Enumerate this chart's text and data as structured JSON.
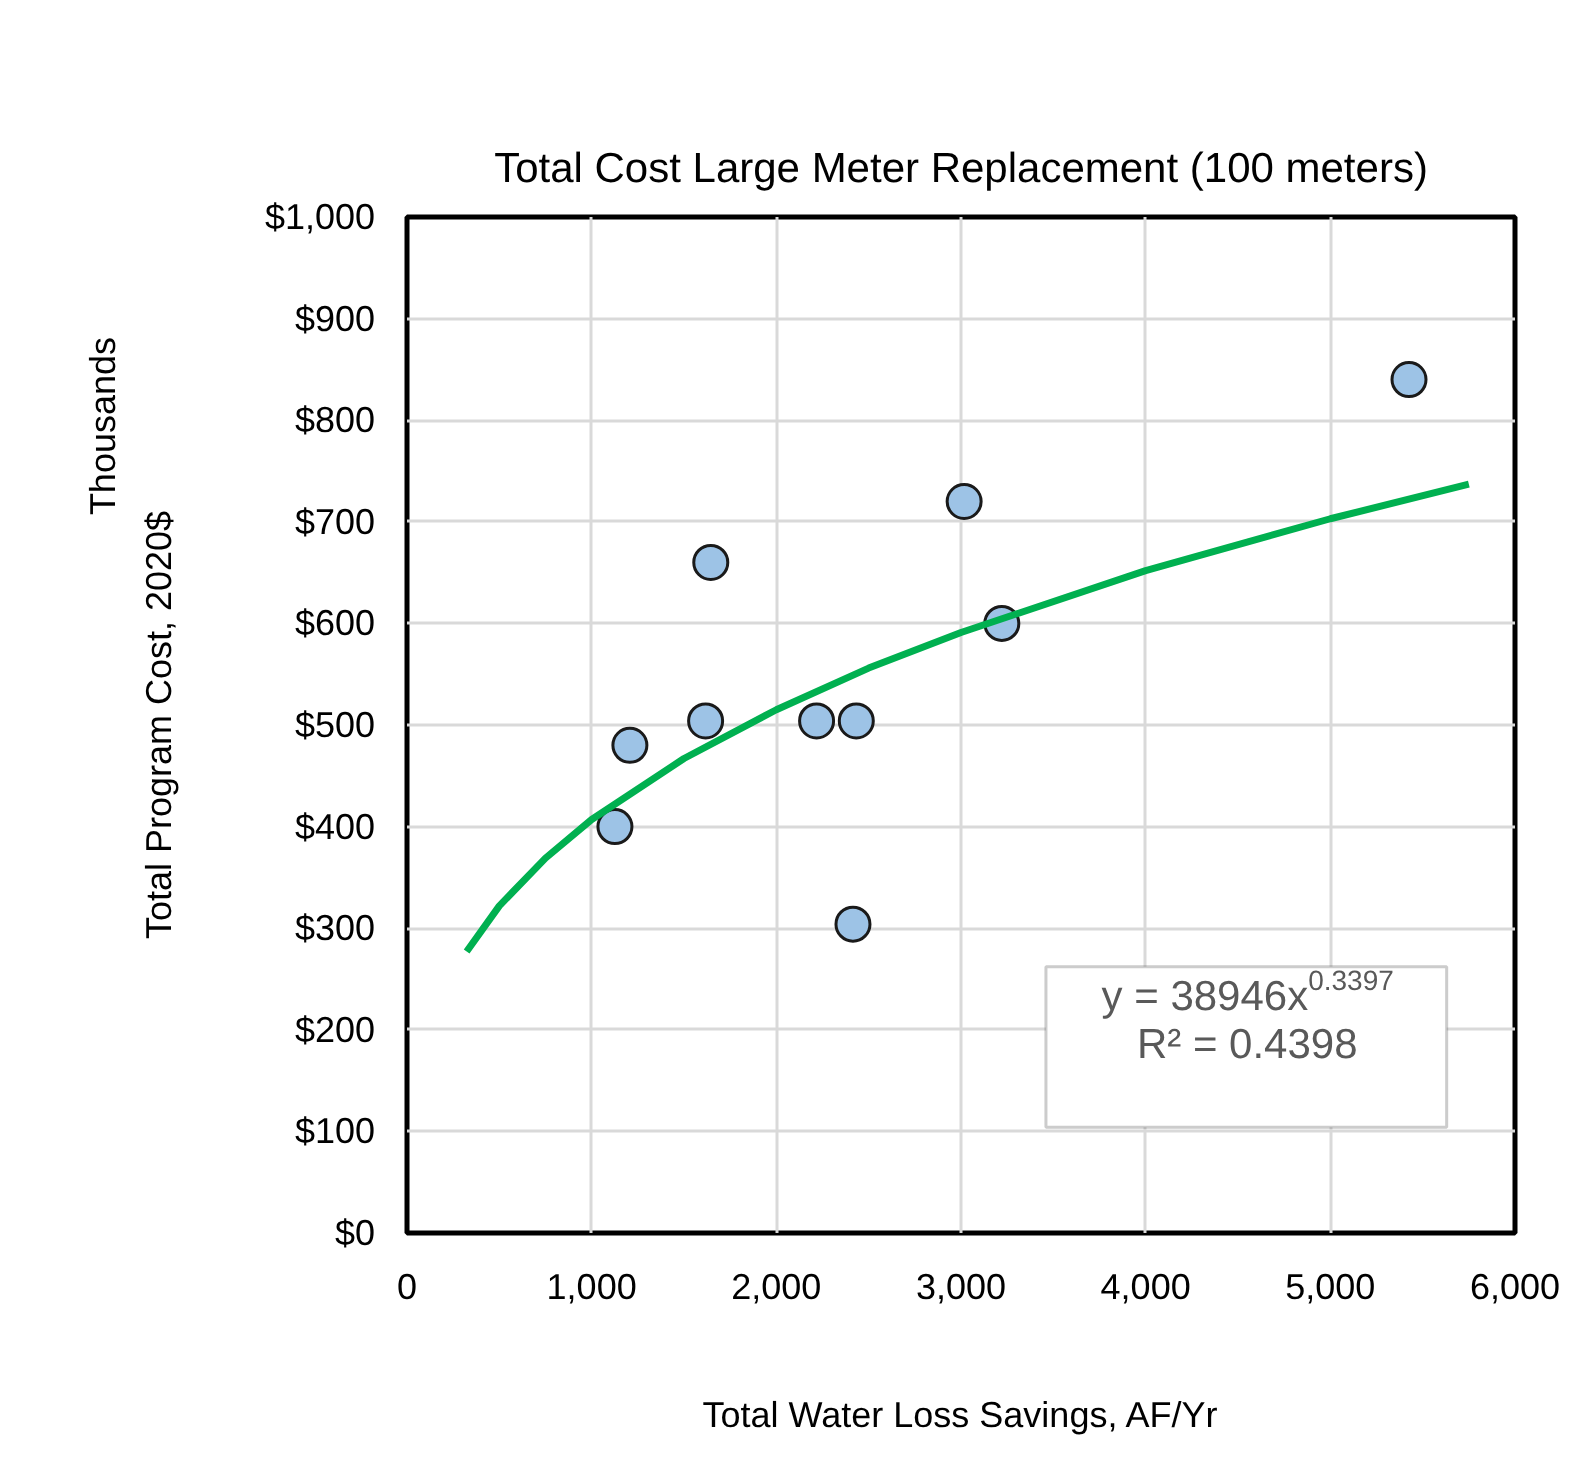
{
  "chart_data": {
    "type": "scatter",
    "title": "Total Cost Large Meter Replacement (100 meters)",
    "xlabel": "Total Water Loss Savings, AF/Yr",
    "ylabel": "Total Program Cost, 2020$",
    "annotations": [
      "Thousands",
      "y = 38946x$^{0.3397}$",
      "R² = 0.4398"
    ],
    "x": [
      1126,
      1207,
      1645,
      1617,
      2218,
      2433,
      2415,
      3017,
      3221,
      5426
    ],
    "series": [
      {
        "color": "#9dc3e6",
        "marker": "circle",
        "values": [
          400,
          480,
          660,
          504,
          504,
          504,
          304,
          720,
          600,
          840
        ]
      },
      {
        "type": "line",
        "marker": "none",
        "color": "#00b050",
        "x": [
          323,
          500,
          750,
          1000,
          1500,
          2000,
          2500,
          3000,
          4000,
          5000,
          5750
        ],
        "values": [
          277,
          322,
          369,
          407,
          467,
          515,
          556,
          591,
          652,
          703,
          737
        ]
      }
    ],
    "line_style": "solid",
    "grid": true,
    "xlim": [
      0,
      6000
    ],
    "xticks": [
      0,
      {
        "value": 1000,
        "label": "1,000"
      },
      {
        "value": 2000,
        "label": "2,000"
      },
      {
        "value": 3000,
        "label": "3,000"
      },
      {
        "value": 4000,
        "label": "4,000"
      },
      {
        "value": 5000,
        "label": "5,000"
      },
      {
        "value": 6000,
        "label": "6,000"
      }
    ],
    "ylim": [
      0,
      1000
    ],
    "yticks": [
      {
        "value": 0,
        "label": "$0"
      },
      {
        "value": 100,
        "label": "$100"
      },
      {
        "value": 200,
        "label": "$200"
      },
      {
        "value": 300,
        "label": "$300"
      },
      {
        "value": 400,
        "label": "$400"
      },
      {
        "value": 500,
        "label": "$500"
      },
      {
        "value": 600,
        "label": "$600"
      },
      {
        "value": 700,
        "label": "$700"
      },
      {
        "value": 800,
        "label": "$800"
      },
      {
        "value": 900,
        "label": "$900"
      },
      {
        "value": 1000,
        "label": "$1,000"
      }
    ]
  }
}
